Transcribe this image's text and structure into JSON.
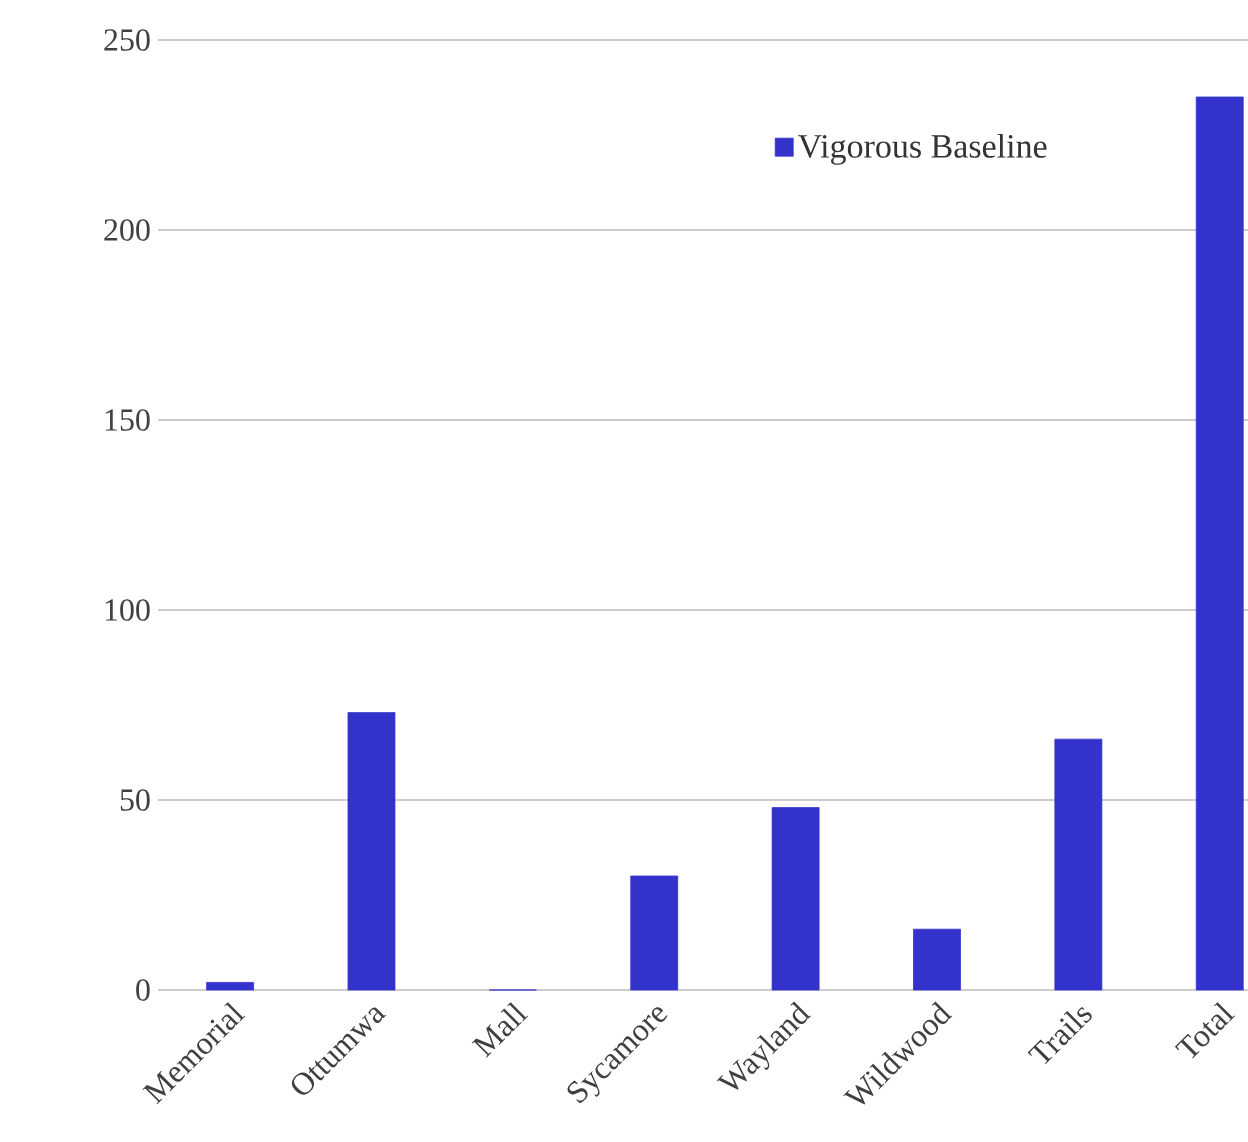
{
  "chart_data": {
    "type": "bar",
    "categories": [
      "Memorial",
      "Ottumwa",
      "Mall",
      "Sycamore",
      "Wayland",
      "Wildwood",
      "Trails",
      "Total"
    ],
    "series": [
      {
        "name": "Vigorous Baseline",
        "color": "#3333cc",
        "values": [
          2,
          73,
          0,
          30,
          48,
          16,
          66,
          235
        ]
      }
    ],
    "ylim": [
      0,
      250
    ],
    "yticks": [
      0,
      50,
      100,
      150,
      200,
      250
    ],
    "grid": "y",
    "legend": "top right"
  }
}
